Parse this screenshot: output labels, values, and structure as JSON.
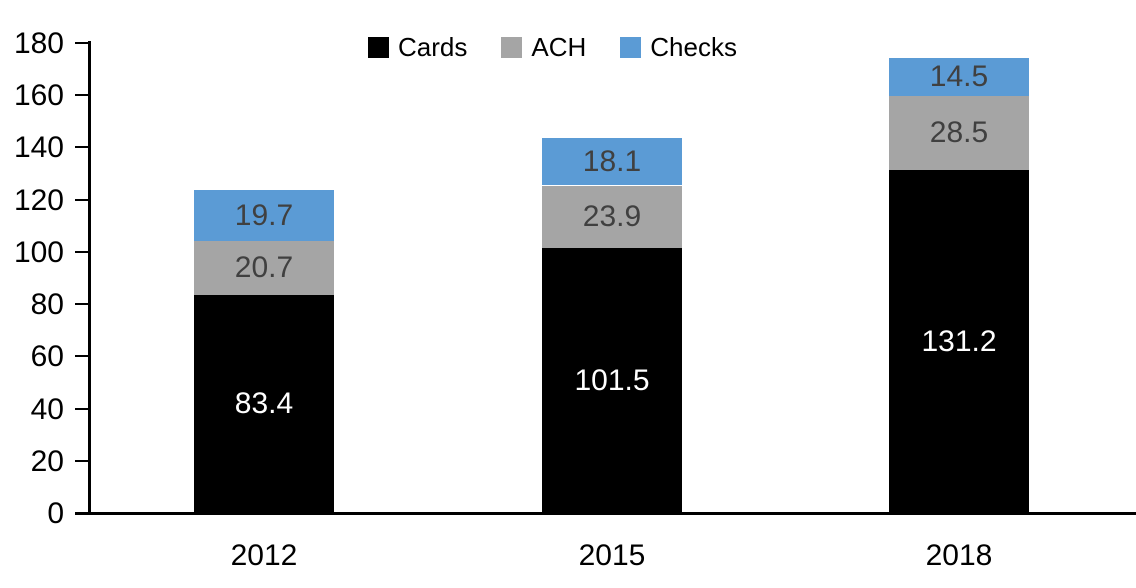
{
  "chart_data": {
    "type": "bar",
    "stacked": true,
    "title": "",
    "categories": [
      "2012",
      "2015",
      "2018"
    ],
    "series": [
      {
        "name": "Cards",
        "color": "#000000",
        "label_color": "#FFFFFF",
        "values": [
          83.4,
          101.5,
          131.2
        ]
      },
      {
        "name": "ACH",
        "color": "#A5A5A5",
        "label_color": "#404040",
        "values": [
          20.7,
          23.9,
          28.5
        ]
      },
      {
        "name": "Checks",
        "color": "#5B9BD5",
        "label_color": "#404040",
        "values": [
          19.7,
          18.1,
          14.5
        ]
      }
    ],
    "totals": [
      123.8,
      143.5,
      174.2
    ],
    "xlabel": "",
    "ylabel": "",
    "ylim": [
      0,
      180
    ],
    "ytick_step": 20,
    "yticks": [
      0,
      20,
      40,
      60,
      80,
      100,
      120,
      140,
      160,
      180
    ],
    "grid": false,
    "legend_position": "top-center",
    "legend_entries": [
      "Cards",
      "ACH",
      "Checks"
    ],
    "axis_color": "#000000",
    "background_color": "#ffffff"
  }
}
